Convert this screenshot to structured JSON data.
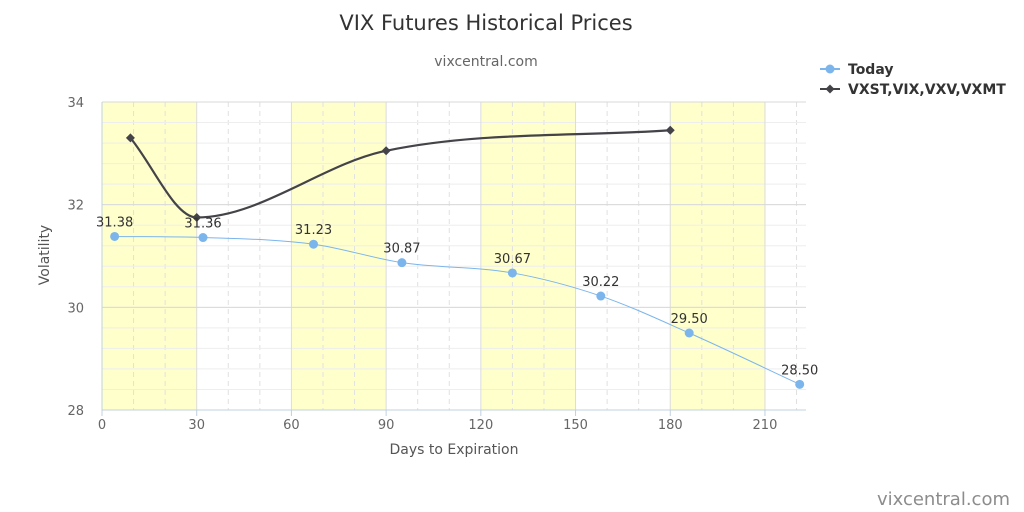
{
  "chart_data": {
    "type": "line",
    "title": "VIX Futures Historical Prices",
    "subtitle": "vixcentral.com",
    "xlabel": "Days to Expiration",
    "ylabel": "Volatility",
    "xlim": [
      0,
      223
    ],
    "ylim": [
      28,
      34
    ],
    "xticks": [
      0,
      30,
      60,
      90,
      120,
      150,
      180,
      210
    ],
    "yticks": [
      28,
      30,
      32,
      34
    ],
    "x_minor_step": 10,
    "y_minor_step": 0.4,
    "bands": [
      [
        0,
        30
      ],
      [
        60,
        90
      ],
      [
        120,
        150
      ],
      [
        180,
        210
      ]
    ],
    "band_color": "#ffffcc",
    "grid": true,
    "legend_position": "top-right",
    "series": [
      {
        "name": "Today",
        "color": "#7cb5ec",
        "marker": "circle",
        "x": [
          4,
          32,
          67,
          95,
          130,
          158,
          186,
          221
        ],
        "y": [
          31.38,
          31.36,
          31.23,
          30.87,
          30.67,
          30.22,
          29.5,
          28.5
        ],
        "labels": [
          "31.38",
          "31.36",
          "31.23",
          "30.87",
          "30.67",
          "30.22",
          "29.50",
          "28.50"
        ]
      },
      {
        "name": "VXST,VIX,VXV,VXMT",
        "color": "#434348",
        "marker": "diamond",
        "x": [
          9,
          30,
          90,
          180
        ],
        "y": [
          33.3,
          31.75,
          33.05,
          33.45
        ]
      }
    ]
  },
  "credit": "vixcentral.com"
}
